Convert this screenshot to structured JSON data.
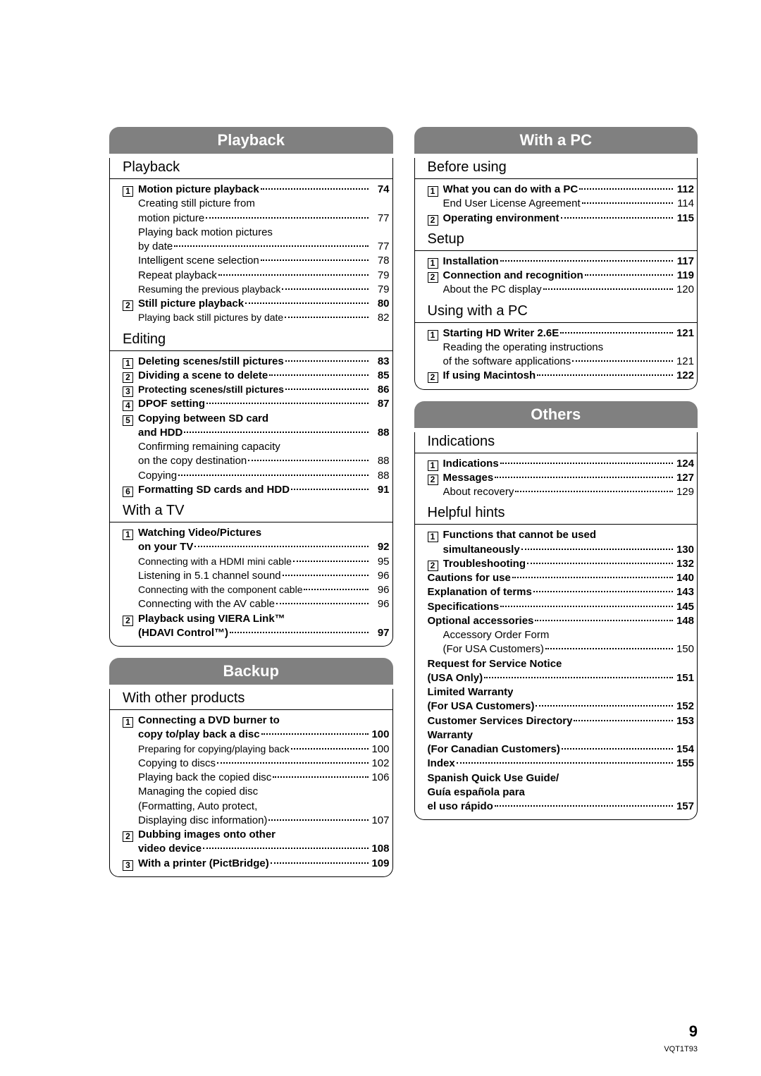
{
  "page": {
    "number": "9",
    "code": "VQT1T93"
  },
  "colors": {
    "tabBg": "#808080",
    "tabText": "#ffffff",
    "text": "#000000",
    "bg": "#ffffff"
  },
  "left": [
    {
      "tab": "Playback",
      "groups": [
        {
          "title": "Playback",
          "items": [
            {
              "n": "1",
              "bold": true,
              "label": "Motion picture playback",
              "page": "74"
            },
            {
              "spacer": true,
              "label": "Creating still picture from"
            },
            {
              "spacer": true,
              "label": "motion picture",
              "page": "77"
            },
            {
              "spacer": true,
              "label": "Playing back motion pictures"
            },
            {
              "spacer": true,
              "label": "by date",
              "page": "77"
            },
            {
              "spacer": true,
              "label": "Intelligent scene selection",
              "page": "78"
            },
            {
              "spacer": true,
              "label": "Repeat playback",
              "page": "79"
            },
            {
              "spacer": true,
              "label": "Resuming the previous playback",
              "page": "79",
              "tight": true
            },
            {
              "n": "2",
              "bold": true,
              "label": "Still picture playback",
              "page": "80"
            },
            {
              "spacer": true,
              "label": "Playing back still pictures by date",
              "page": "82",
              "tight": true
            }
          ]
        },
        {
          "title": "Editing",
          "items": [
            {
              "n": "1",
              "bold": true,
              "label": "Deleting scenes/still pictures",
              "page": "83"
            },
            {
              "n": "2",
              "bold": true,
              "label": "Dividing a scene to delete",
              "page": "85"
            },
            {
              "n": "3",
              "bold": true,
              "label": "Protecting scenes/still pictures",
              "page": "86",
              "tight": true
            },
            {
              "n": "4",
              "bold": true,
              "label": "DPOF setting",
              "page": "87"
            },
            {
              "n": "5",
              "bold": true,
              "label": "Copying between SD card"
            },
            {
              "spacer": true,
              "bold": true,
              "label": "and HDD",
              "page": "88"
            },
            {
              "spacer": true,
              "label": "Confirming remaining capacity"
            },
            {
              "spacer": true,
              "label": "on the copy destination",
              "page": "88"
            },
            {
              "spacer": true,
              "label": "Copying",
              "page": "88"
            },
            {
              "n": "6",
              "bold": true,
              "label": "Formatting SD cards and HDD",
              "page": "91"
            }
          ]
        },
        {
          "title": "With a TV",
          "items": [
            {
              "n": "1",
              "bold": true,
              "label": "Watching Video/Pictures"
            },
            {
              "spacer": true,
              "bold": true,
              "label": "on your TV",
              "page": "92"
            },
            {
              "spacer": true,
              "label": "Connecting with a HDMI mini cable",
              "page": "95",
              "tight": true
            },
            {
              "spacer": true,
              "label": "Listening in 5.1 channel sound",
              "page": "96"
            },
            {
              "spacer": true,
              "label": "Connecting with the component cable",
              "page": "96",
              "tight": true
            },
            {
              "spacer": true,
              "label": "Connecting with the AV cable",
              "page": "96"
            },
            {
              "n": "2",
              "bold": true,
              "label": "Playback using VIERA Link™"
            },
            {
              "spacer": true,
              "bold": true,
              "label": "(HDAVI Control™)",
              "page": "97"
            }
          ]
        }
      ]
    },
    {
      "tab": "Backup",
      "groups": [
        {
          "title": "With other products",
          "items": [
            {
              "n": "1",
              "bold": true,
              "label": "Connecting a DVD burner to"
            },
            {
              "spacer": true,
              "bold": true,
              "label": "copy to/play back a disc",
              "page": "100"
            },
            {
              "spacer": true,
              "label": "Preparing for copying/playing back",
              "page": "100",
              "tight": true
            },
            {
              "spacer": true,
              "label": "Copying to discs",
              "page": "102"
            },
            {
              "spacer": true,
              "label": "Playing back the copied disc",
              "page": "106"
            },
            {
              "spacer": true,
              "label": "Managing the copied disc"
            },
            {
              "spacer": true,
              "label": "(Formatting, Auto protect,"
            },
            {
              "spacer": true,
              "label": "Displaying disc information)",
              "page": "107"
            },
            {
              "n": "2",
              "bold": true,
              "label": "Dubbing images onto other"
            },
            {
              "spacer": true,
              "bold": true,
              "label": "video device",
              "page": "108"
            },
            {
              "n": "3",
              "bold": true,
              "label": "With a printer (PictBridge)",
              "page": "109"
            }
          ]
        }
      ]
    }
  ],
  "right": [
    {
      "tab": "With a PC",
      "groups": [
        {
          "title": "Before using",
          "items": [
            {
              "n": "1",
              "bold": true,
              "label": "What you can do with a PC",
              "page": "112"
            },
            {
              "spacer": true,
              "label": "End User License Agreement",
              "page": "114"
            },
            {
              "n": "2",
              "bold": true,
              "label": "Operating environment",
              "page": "115"
            }
          ]
        },
        {
          "title": "Setup",
          "items": [
            {
              "n": "1",
              "bold": true,
              "label": "Installation",
              "page": "117"
            },
            {
              "n": "2",
              "bold": true,
              "label": "Connection and recognition",
              "page": "119"
            },
            {
              "spacer": true,
              "label": "About the PC display",
              "page": "120"
            }
          ]
        },
        {
          "title": "Using with a PC",
          "items": [
            {
              "n": "1",
              "bold": true,
              "label": "Starting HD Writer 2.6E",
              "page": "121"
            },
            {
              "spacer": true,
              "label": "Reading the operating instructions"
            },
            {
              "spacer": true,
              "label": "of the software applications",
              "page": "121"
            },
            {
              "n": "2",
              "bold": true,
              "label": "If using Macintosh",
              "page": "122"
            }
          ]
        }
      ]
    },
    {
      "tab": "Others",
      "groups": [
        {
          "title": "Indications",
          "items": [
            {
              "n": "1",
              "bold": true,
              "label": "Indications",
              "page": "124"
            },
            {
              "n": "2",
              "bold": true,
              "label": "Messages",
              "page": "127"
            },
            {
              "spacer": true,
              "label": "About recovery",
              "page": "129"
            }
          ]
        },
        {
          "title": "Helpful hints",
          "items": [
            {
              "n": "1",
              "bold": true,
              "label": "Functions that cannot be used"
            },
            {
              "spacer": true,
              "bold": true,
              "label": "simultaneously",
              "page": "130"
            },
            {
              "n": "2",
              "bold": true,
              "label": "Troubleshooting",
              "page": "132"
            },
            {
              "bold": true,
              "label": "Cautions for use",
              "page": "140"
            },
            {
              "bold": true,
              "label": "Explanation of terms",
              "page": "143"
            },
            {
              "bold": true,
              "label": "Specifications",
              "page": "145"
            },
            {
              "bold": true,
              "label": "Optional accessories",
              "page": "148"
            },
            {
              "spacer": true,
              "label": "Accessory Order Form"
            },
            {
              "spacer": true,
              "label": "(For USA Customers)",
              "page": "150"
            },
            {
              "bold": true,
              "label": "Request for Service Notice"
            },
            {
              "bold": true,
              "label": "(USA Only)",
              "page": "151"
            },
            {
              "bold": true,
              "label": "Limited Warranty"
            },
            {
              "bold": true,
              "label": "(For USA Customers)",
              "page": "152"
            },
            {
              "bold": true,
              "label": "Customer Services Directory",
              "page": "153"
            },
            {
              "bold": true,
              "label": "Warranty"
            },
            {
              "bold": true,
              "label": "(For Canadian Customers)",
              "page": "154"
            },
            {
              "bold": true,
              "label": "Index",
              "page": "155"
            },
            {
              "bold": true,
              "label": "Spanish Quick Use Guide/"
            },
            {
              "bold": true,
              "label": "Guía española para"
            },
            {
              "bold": true,
              "label": "el uso rápido",
              "page": "157"
            }
          ]
        }
      ]
    }
  ]
}
